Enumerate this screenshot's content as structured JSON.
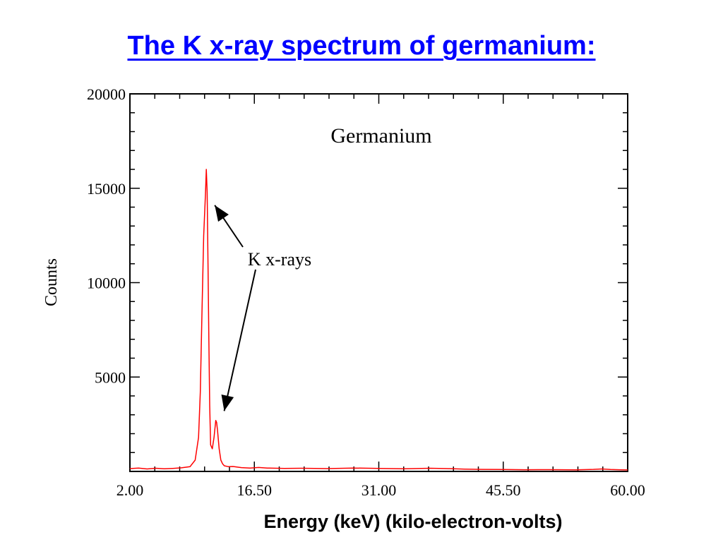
{
  "slide": {
    "title": "The K x-ray spectrum of germanium:",
    "caption": "Energy (keV) (kilo-electron-volts)"
  },
  "chart_data": {
    "type": "line",
    "title": "Germanium",
    "xlabel": "",
    "ylabel": "Counts",
    "xlim": [
      2.0,
      60.0
    ],
    "ylim": [
      0,
      20000
    ],
    "x_ticks": [
      "2.00",
      "16.50",
      "31.00",
      "45.50",
      "60.00"
    ],
    "y_ticks": [
      "5000",
      "10000",
      "15000",
      "20000"
    ],
    "grid": false,
    "line_color": "#ff0000",
    "annotation": {
      "text": "K x-rays",
      "points_to": [
        [
          10.9,
          14100
        ],
        [
          12.0,
          3200
        ]
      ]
    },
    "series": [
      {
        "x": [
          2.0,
          3.0,
          4.0,
          5.0,
          6.0,
          7.0,
          8.0,
          9.0,
          9.6,
          10.0,
          10.2,
          10.4,
          10.6,
          10.8,
          10.9,
          11.0,
          11.1,
          11.2,
          11.3,
          11.4,
          11.6,
          11.8,
          12.0,
          12.1,
          12.2,
          12.4,
          12.6,
          12.8,
          13.0,
          13.5,
          14.0,
          15.0,
          16.0,
          17.0,
          18.0,
          20.0,
          22.0,
          25.0,
          28.0,
          31.0,
          34.0,
          37.0,
          39.0,
          41.0,
          43.0,
          45.5,
          48.0,
          51.0,
          54.0,
          56.0,
          57.0,
          58.0,
          59.0,
          60.0
        ],
        "y": [
          150,
          180,
          130,
          170,
          140,
          160,
          190,
          250,
          600,
          1800,
          4200,
          8500,
          12500,
          14700,
          16000,
          14800,
          11000,
          7000,
          3500,
          1400,
          1200,
          1800,
          2700,
          2600,
          2200,
          1200,
          600,
          400,
          300,
          250,
          260,
          200,
          180,
          210,
          180,
          160,
          170,
          150,
          180,
          160,
          140,
          170,
          150,
          120,
          110,
          100,
          90,
          95,
          85,
          110,
          130,
          100,
          90,
          80
        ]
      }
    ]
  }
}
